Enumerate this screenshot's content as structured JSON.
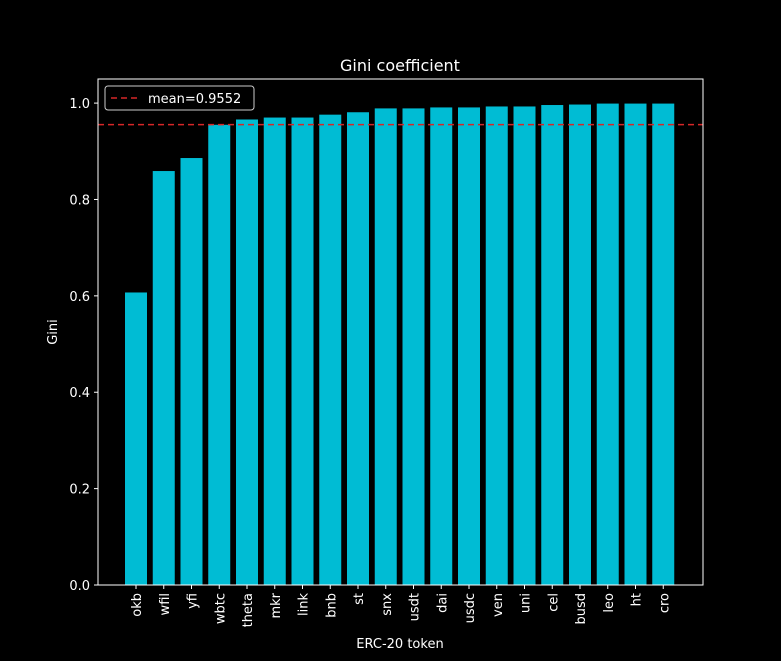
{
  "chart_data": {
    "type": "bar",
    "title": "Gini coefficient",
    "xlabel": "ERC-20 token",
    "ylabel": "Gini",
    "ylim": [
      0,
      1.05
    ],
    "yticks": [
      "0.0",
      "0.2",
      "0.4",
      "0.6",
      "0.8",
      "1.0"
    ],
    "grid": false,
    "legend_position": "upper-left",
    "categories": [
      "okb",
      "wfil",
      "yfi",
      "wbtc",
      "theta",
      "mkr",
      "link",
      "bnb",
      "st",
      "snx",
      "usdt",
      "dai",
      "usdc",
      "ven",
      "uni",
      "cel",
      "busd",
      "leo",
      "ht",
      "cro"
    ],
    "values": [
      0.607,
      0.859,
      0.886,
      0.955,
      0.966,
      0.97,
      0.97,
      0.976,
      0.981,
      0.989,
      0.989,
      0.991,
      0.991,
      0.993,
      0.993,
      0.996,
      0.997,
      0.999,
      0.999,
      0.999
    ],
    "mean_line": {
      "value": 0.9552,
      "label": "mean=0.9552",
      "color": "#d62728",
      "style": "dashed"
    },
    "colors": {
      "bar": "#00bcd4",
      "background": "#000000",
      "foreground": "#ffffff"
    }
  }
}
